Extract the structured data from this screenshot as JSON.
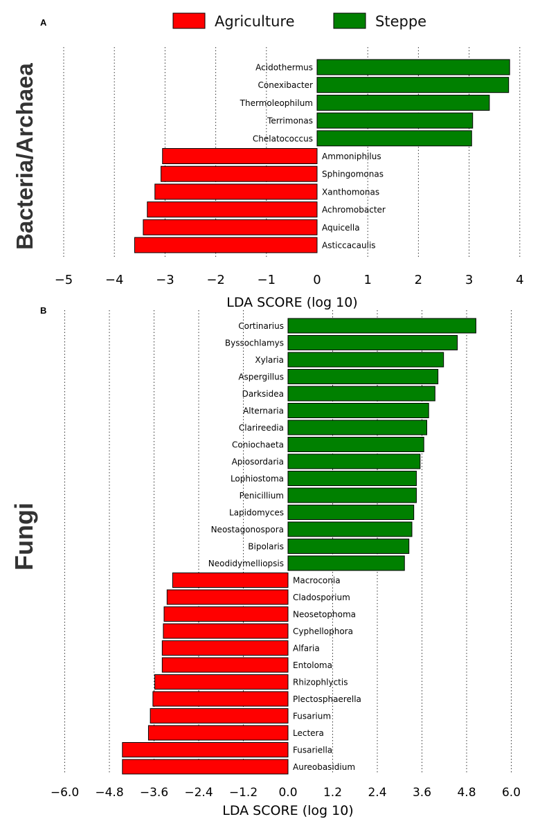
{
  "legend": {
    "items": [
      {
        "label": "Agriculture",
        "color": "#ff0000"
      },
      {
        "label": "Steppe",
        "color": "#008000"
      }
    ]
  },
  "chart_data": [
    {
      "type": "bar",
      "orientation": "horizontal",
      "panel_label": "A",
      "side_title": "Bacteria/Archaea",
      "xlabel": "LDA SCORE (log 10)",
      "xlim": [
        -5.5,
        4.3
      ],
      "xticks": [
        -5,
        -4,
        -3,
        -2,
        -1,
        0,
        1,
        2,
        3,
        4
      ],
      "xtick_labels": [
        "−5",
        "−4",
        "−3",
        "−2",
        "−1",
        "0",
        "1",
        "2",
        "3",
        "4"
      ],
      "grid": "vertical dotted",
      "categories": [
        "Acidothermus",
        "Conexibacter",
        "Thermoleophilum",
        "Terrimonas",
        "Chelatococcus",
        "Ammoniphilus",
        "Sphingomonas",
        "Xanthomonas",
        "Achromobacter",
        "Aquicella",
        "Asticcacaulis"
      ],
      "values": [
        3.8,
        3.78,
        3.4,
        3.07,
        3.05,
        -3.05,
        -3.08,
        -3.2,
        -3.35,
        -3.43,
        -3.6
      ],
      "groups": [
        "Steppe",
        "Steppe",
        "Steppe",
        "Steppe",
        "Steppe",
        "Agriculture",
        "Agriculture",
        "Agriculture",
        "Agriculture",
        "Agriculture",
        "Agriculture"
      ]
    },
    {
      "type": "bar",
      "orientation": "horizontal",
      "panel_label": "B",
      "side_title": "Fungi",
      "xlabel": "LDA SCORE (log 10)",
      "xlim": [
        -6.7,
        6.4
      ],
      "xticks": [
        -6.0,
        -4.8,
        -3.6,
        -2.4,
        -1.2,
        0.0,
        1.2,
        2.4,
        3.6,
        4.8,
        6.0
      ],
      "xtick_labels": [
        "−6.0",
        "−4.8",
        "−3.6",
        "−2.4",
        "−1.2",
        "0.0",
        "1.2",
        "2.4",
        "3.6",
        "4.8",
        "6.0"
      ],
      "grid": "vertical dotted",
      "categories": [
        "Cortinarius",
        "Byssochlamys",
        "Xylaria",
        "Aspergillus",
        "Darksidea",
        "Alternaria",
        "Clarireedia",
        "Coniochaeta",
        "Apiosordaria",
        "Lophiostoma",
        "Penicillium",
        "Lapidomyces",
        "Neostagonospora",
        "Bipolaris",
        "Neodidymelliopsis",
        "Macroconia",
        "Cladosporium",
        "Neosetophoma",
        "Cyphellophora",
        "Alfaria",
        "Entoloma",
        "Rhizophlyctis",
        "Plectosphaerella",
        "Fusarium",
        "Lectera",
        "Fusariella",
        "Aureobasidium"
      ],
      "values": [
        5.05,
        4.55,
        4.18,
        4.03,
        3.95,
        3.78,
        3.73,
        3.65,
        3.55,
        3.45,
        3.45,
        3.38,
        3.33,
        3.25,
        3.13,
        -3.1,
        -3.25,
        -3.33,
        -3.35,
        -3.38,
        -3.38,
        -3.58,
        -3.63,
        -3.7,
        -3.75,
        -4.45,
        -4.45
      ],
      "groups": [
        "Steppe",
        "Steppe",
        "Steppe",
        "Steppe",
        "Steppe",
        "Steppe",
        "Steppe",
        "Steppe",
        "Steppe",
        "Steppe",
        "Steppe",
        "Steppe",
        "Steppe",
        "Steppe",
        "Steppe",
        "Agriculture",
        "Agriculture",
        "Agriculture",
        "Agriculture",
        "Agriculture",
        "Agriculture",
        "Agriculture",
        "Agriculture",
        "Agriculture",
        "Agriculture",
        "Agriculture",
        "Agriculture"
      ]
    }
  ]
}
